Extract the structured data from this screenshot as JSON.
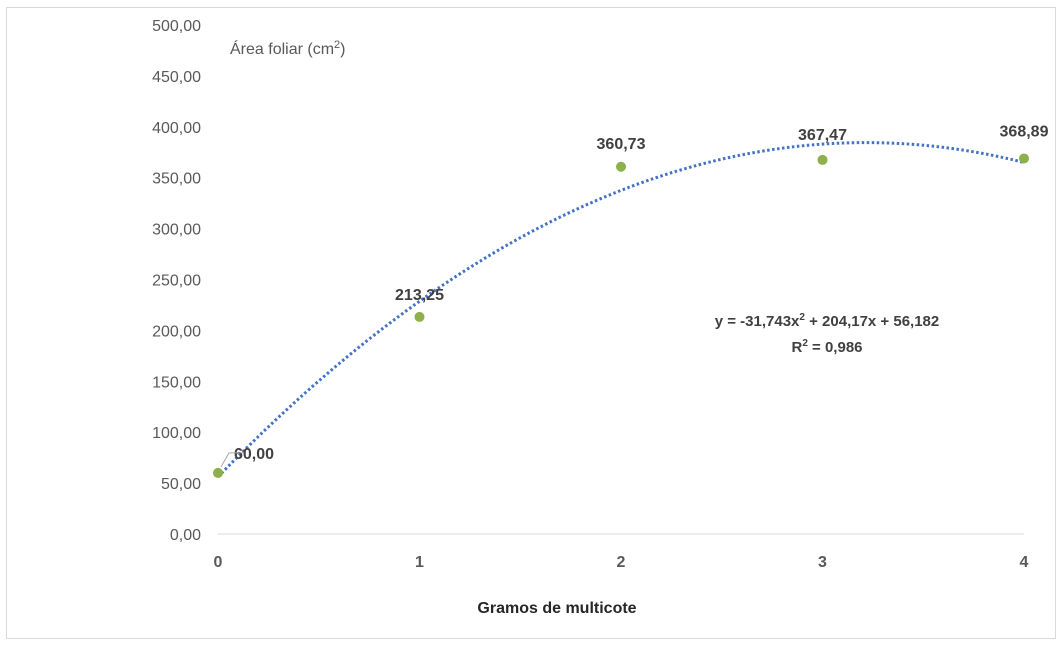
{
  "chart_data": {
    "type": "scatter",
    "xlabel": "Gramos de multicote",
    "ylabel_text": "Área foliar (cm",
    "ylabel_sup": "2",
    "ylabel_close": ")",
    "ylim": [
      0,
      500
    ],
    "xlim": [
      0,
      4
    ],
    "y_ticks": [
      "0,00",
      "50,00",
      "100,00",
      "150,00",
      "200,00",
      "250,00",
      "300,00",
      "350,00",
      "400,00",
      "450,00",
      "500,00"
    ],
    "y_tick_values": [
      0,
      50,
      100,
      150,
      200,
      250,
      300,
      350,
      400,
      450,
      500
    ],
    "x_ticks": [
      "0",
      "1",
      "2",
      "3",
      "4"
    ],
    "x_tick_values": [
      0,
      1,
      2,
      3,
      4
    ],
    "grid": false,
    "series": [
      {
        "x": [
          0,
          1,
          2,
          3,
          4
        ],
        "y": [
          60.0,
          213.25,
          360.73,
          367.47,
          368.89
        ],
        "labels": [
          "60,00",
          "213,25",
          "360,73",
          "367,47",
          "368,89"
        ],
        "color": "#8db04a"
      }
    ],
    "trendline": {
      "type": "polynomial",
      "order": 2,
      "coefficients": [
        -31.743,
        204.17,
        56.182
      ],
      "color": "#4472c4",
      "style": "dotted",
      "equation_parts": [
        "y = -31,743x",
        "2",
        " + 204,17x + 56,182"
      ],
      "r2_parts": [
        "R",
        "2",
        " = 0,986"
      ]
    }
  }
}
